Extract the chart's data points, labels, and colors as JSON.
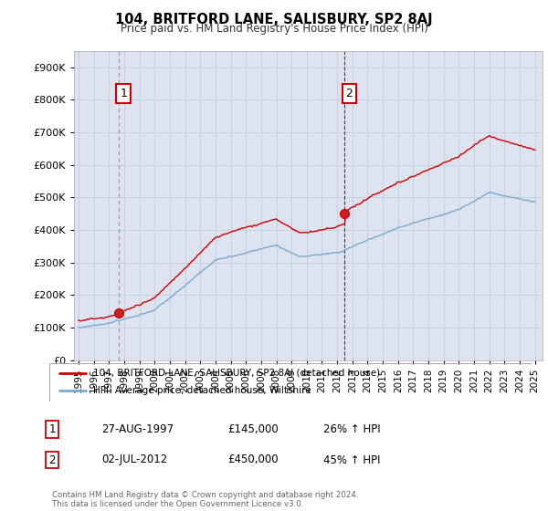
{
  "title": "104, BRITFORD LANE, SALISBURY, SP2 8AJ",
  "subtitle": "Price paid vs. HM Land Registry's House Price Index (HPI)",
  "ytick_values": [
    0,
    100000,
    200000,
    300000,
    400000,
    500000,
    600000,
    700000,
    800000,
    900000
  ],
  "ylim": [
    0,
    950000
  ],
  "xlim_start": 1994.7,
  "xlim_end": 2025.5,
  "grid_color": "#c8cfe0",
  "background_color": "#ffffff",
  "plot_bg_color": "#dde3ef",
  "red_line_color": "#cc0000",
  "blue_line_color": "#7aaad0",
  "ann1_x": 1997.65,
  "ann1_y": 145000,
  "ann2_x": 2012.5,
  "ann2_y": 450000,
  "legend_line1": "104, BRITFORD LANE, SALISBURY, SP2 8AJ (detached house)",
  "legend_line2": "HPI: Average price, detached house, Wiltshire",
  "footer": "Contains HM Land Registry data © Crown copyright and database right 2024.\nThis data is licensed under the Open Government Licence v3.0.",
  "table_rows": [
    {
      "num": "1",
      "date": "27-AUG-1997",
      "price": "£145,000",
      "pct": "26% ↑ HPI"
    },
    {
      "num": "2",
      "date": "02-JUL-2012",
      "price": "£450,000",
      "pct": "45% ↑ HPI"
    }
  ],
  "xtick_years": [
    1995,
    1996,
    1997,
    1998,
    1999,
    2000,
    2001,
    2002,
    2003,
    2004,
    2005,
    2006,
    2007,
    2008,
    2009,
    2010,
    2011,
    2012,
    2013,
    2014,
    2015,
    2016,
    2017,
    2018,
    2019,
    2020,
    2021,
    2022,
    2023,
    2024,
    2025
  ]
}
